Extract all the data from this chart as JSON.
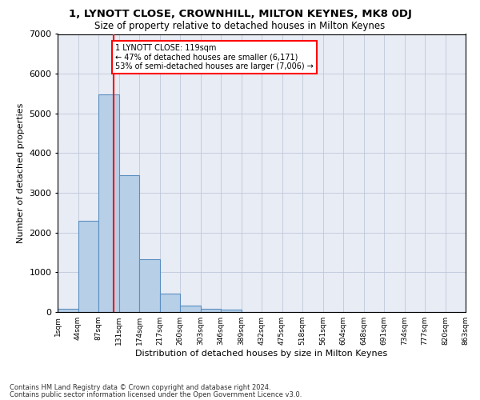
{
  "title": "1, LYNOTT CLOSE, CROWNHILL, MILTON KEYNES, MK8 0DJ",
  "subtitle": "Size of property relative to detached houses in Milton Keynes",
  "xlabel": "Distribution of detached houses by size in Milton Keynes",
  "ylabel": "Number of detached properties",
  "footnote1": "Contains HM Land Registry data © Crown copyright and database right 2024.",
  "footnote2": "Contains public sector information licensed under the Open Government Licence v3.0.",
  "bar_values": [
    80,
    2300,
    5480,
    3450,
    1320,
    470,
    160,
    90,
    55,
    0,
    0,
    0,
    0,
    0,
    0,
    0,
    0,
    0,
    0,
    0
  ],
  "categories": [
    "1sqm",
    "44sqm",
    "87sqm",
    "131sqm",
    "174sqm",
    "217sqm",
    "260sqm",
    "303sqm",
    "346sqm",
    "389sqm",
    "432sqm",
    "475sqm",
    "518sqm",
    "561sqm",
    "604sqm",
    "648sqm",
    "691sqm",
    "734sqm",
    "777sqm",
    "820sqm",
    "863sqm"
  ],
  "bar_color": "#b8cfe8",
  "bar_edge_color": "#5a8fc0",
  "grid_color": "#c0c8d8",
  "background_color": "#e8ecf5",
  "vline_color": "red",
  "annotation_text": "1 LYNOTT CLOSE: 119sqm\n← 47% of detached houses are smaller (6,171)\n53% of semi-detached houses are larger (7,006) →",
  "annotation_box_color": "white",
  "annotation_box_edge": "red",
  "ylim": [
    0,
    7000
  ],
  "yticks": [
    0,
    1000,
    2000,
    3000,
    4000,
    5000,
    6000,
    7000
  ]
}
